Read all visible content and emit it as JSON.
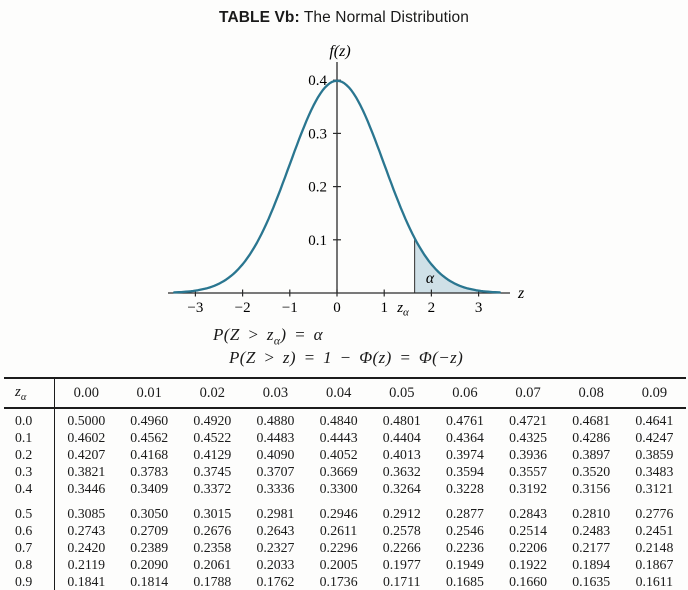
{
  "title": {
    "bold": "TABLE Vb:",
    "rest": "The Normal Distribution"
  },
  "chart_data": {
    "type": "line",
    "curve": "standard_normal_pdf",
    "title": "",
    "xlabel": "z",
    "ylabel": "f(z)",
    "x_ticks": [
      -3,
      -2,
      -1,
      0,
      1,
      2,
      3
    ],
    "y_ticks": [
      0.1,
      0.2,
      0.3,
      0.4
    ],
    "xlim": [
      -3.55,
      3.7
    ],
    "ylim": [
      0,
      0.435
    ],
    "peak_value": 0.3989,
    "z_alpha": 1.645,
    "z_alpha_label": {
      "base": "z",
      "sub": "α"
    },
    "alpha_label": "α",
    "grid": false,
    "legend": "none",
    "colors": {
      "curve": "#2a7690",
      "shade": "#cfe0e7",
      "axis": "#2b2b2b"
    }
  },
  "formulas": {
    "line1": {
      "pre": "P(Z > z",
      "sub": "α",
      "post": ") = α"
    },
    "line2": "P(Z > z) = 1 − Φ(z) = Φ(−z)"
  },
  "table": {
    "corner": {
      "base": "z",
      "sub": "α"
    },
    "columns": [
      "0.00",
      "0.01",
      "0.02",
      "0.03",
      "0.04",
      "0.05",
      "0.06",
      "0.07",
      "0.08",
      "0.09"
    ],
    "row_groups": [
      {
        "rows": [
          {
            "label": "0.0",
            "values": [
              "0.5000",
              "0.4960",
              "0.4920",
              "0.4880",
              "0.4840",
              "0.4801",
              "0.4761",
              "0.4721",
              "0.4681",
              "0.4641"
            ]
          },
          {
            "label": "0.1",
            "values": [
              "0.4602",
              "0.4562",
              "0.4522",
              "0.4483",
              "0.4443",
              "0.4404",
              "0.4364",
              "0.4325",
              "0.4286",
              "0.4247"
            ]
          },
          {
            "label": "0.2",
            "values": [
              "0.4207",
              "0.4168",
              "0.4129",
              "0.4090",
              "0.4052",
              "0.4013",
              "0.3974",
              "0.3936",
              "0.3897",
              "0.3859"
            ]
          },
          {
            "label": "0.3",
            "values": [
              "0.3821",
              "0.3783",
              "0.3745",
              "0.3707",
              "0.3669",
              "0.3632",
              "0.3594",
              "0.3557",
              "0.3520",
              "0.3483"
            ]
          },
          {
            "label": "0.4",
            "values": [
              "0.3446",
              "0.3409",
              "0.3372",
              "0.3336",
              "0.3300",
              "0.3264",
              "0.3228",
              "0.3192",
              "0.3156",
              "0.3121"
            ]
          }
        ]
      },
      {
        "rows": [
          {
            "label": "0.5",
            "values": [
              "0.3085",
              "0.3050",
              "0.3015",
              "0.2981",
              "0.2946",
              "0.2912",
              "0.2877",
              "0.2843",
              "0.2810",
              "0.2776"
            ]
          },
          {
            "label": "0.6",
            "values": [
              "0.2743",
              "0.2709",
              "0.2676",
              "0.2643",
              "0.2611",
              "0.2578",
              "0.2546",
              "0.2514",
              "0.2483",
              "0.2451"
            ]
          },
          {
            "label": "0.7",
            "values": [
              "0.2420",
              "0.2389",
              "0.2358",
              "0.2327",
              "0.2296",
              "0.2266",
              "0.2236",
              "0.2206",
              "0.2177",
              "0.2148"
            ]
          },
          {
            "label": "0.8",
            "values": [
              "0.2119",
              "0.2090",
              "0.2061",
              "0.2033",
              "0.2005",
              "0.1977",
              "0.1949",
              "0.1922",
              "0.1894",
              "0.1867"
            ]
          },
          {
            "label": "0.9",
            "values": [
              "0.1841",
              "0.1814",
              "0.1788",
              "0.1762",
              "0.1736",
              "0.1711",
              "0.1685",
              "0.1660",
              "0.1635",
              "0.1611"
            ]
          }
        ]
      }
    ]
  }
}
